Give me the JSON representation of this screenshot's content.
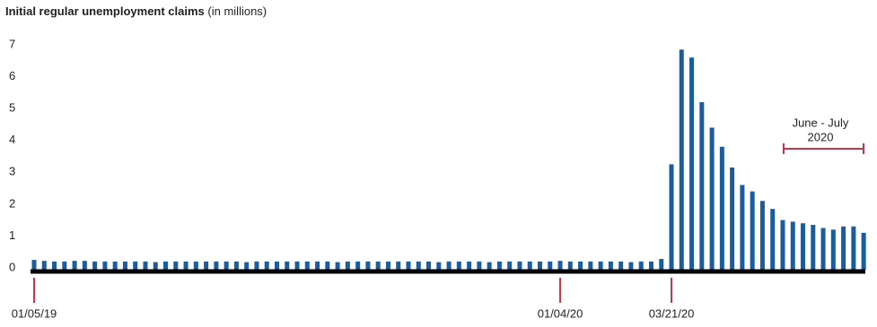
{
  "chart_data": {
    "type": "bar",
    "title": "Initial regular unemployment claims",
    "title_unit": "(in millions)",
    "categories": [
      "01/05/19",
      null,
      null,
      null,
      null,
      null,
      null,
      null,
      null,
      null,
      null,
      null,
      null,
      null,
      null,
      null,
      null,
      null,
      null,
      null,
      null,
      null,
      null,
      null,
      null,
      null,
      null,
      null,
      null,
      null,
      null,
      null,
      null,
      null,
      null,
      null,
      null,
      null,
      null,
      null,
      null,
      null,
      null,
      null,
      null,
      null,
      null,
      null,
      null,
      null,
      null,
      null,
      "01/04/20",
      null,
      null,
      null,
      null,
      null,
      null,
      null,
      null,
      null,
      null,
      "03/21/20",
      null,
      null,
      null,
      null,
      null,
      null,
      null,
      null,
      null,
      null,
      null,
      null,
      null,
      null,
      null,
      null,
      null,
      null,
      null
    ],
    "values": [
      0.25,
      0.22,
      0.2,
      0.2,
      0.22,
      0.22,
      0.2,
      0.2,
      0.2,
      0.2,
      0.2,
      0.2,
      0.18,
      0.2,
      0.2,
      0.2,
      0.2,
      0.2,
      0.2,
      0.2,
      0.2,
      0.18,
      0.2,
      0.2,
      0.2,
      0.2,
      0.2,
      0.2,
      0.2,
      0.2,
      0.18,
      0.2,
      0.2,
      0.2,
      0.2,
      0.2,
      0.2,
      0.2,
      0.2,
      0.2,
      0.18,
      0.2,
      0.2,
      0.2,
      0.2,
      0.18,
      0.2,
      0.2,
      0.2,
      0.2,
      0.2,
      0.2,
      0.22,
      0.2,
      0.2,
      0.2,
      0.2,
      0.2,
      0.2,
      0.18,
      0.2,
      0.2,
      0.28,
      3.25,
      6.85,
      6.6,
      5.2,
      4.4,
      3.8,
      3.15,
      2.6,
      2.4,
      2.1,
      1.85,
      1.5,
      1.45,
      1.4,
      1.35,
      1.25,
      1.2,
      1.3,
      1.3,
      1.1
    ],
    "color": "#1b5c9e",
    "tick_color": "#c8344a",
    "ylim": [
      0,
      7
    ],
    "yticks": [
      0,
      1,
      2,
      3,
      4,
      5,
      6,
      7
    ],
    "annotation": {
      "lines": [
        "June - July",
        "2020"
      ]
    }
  }
}
